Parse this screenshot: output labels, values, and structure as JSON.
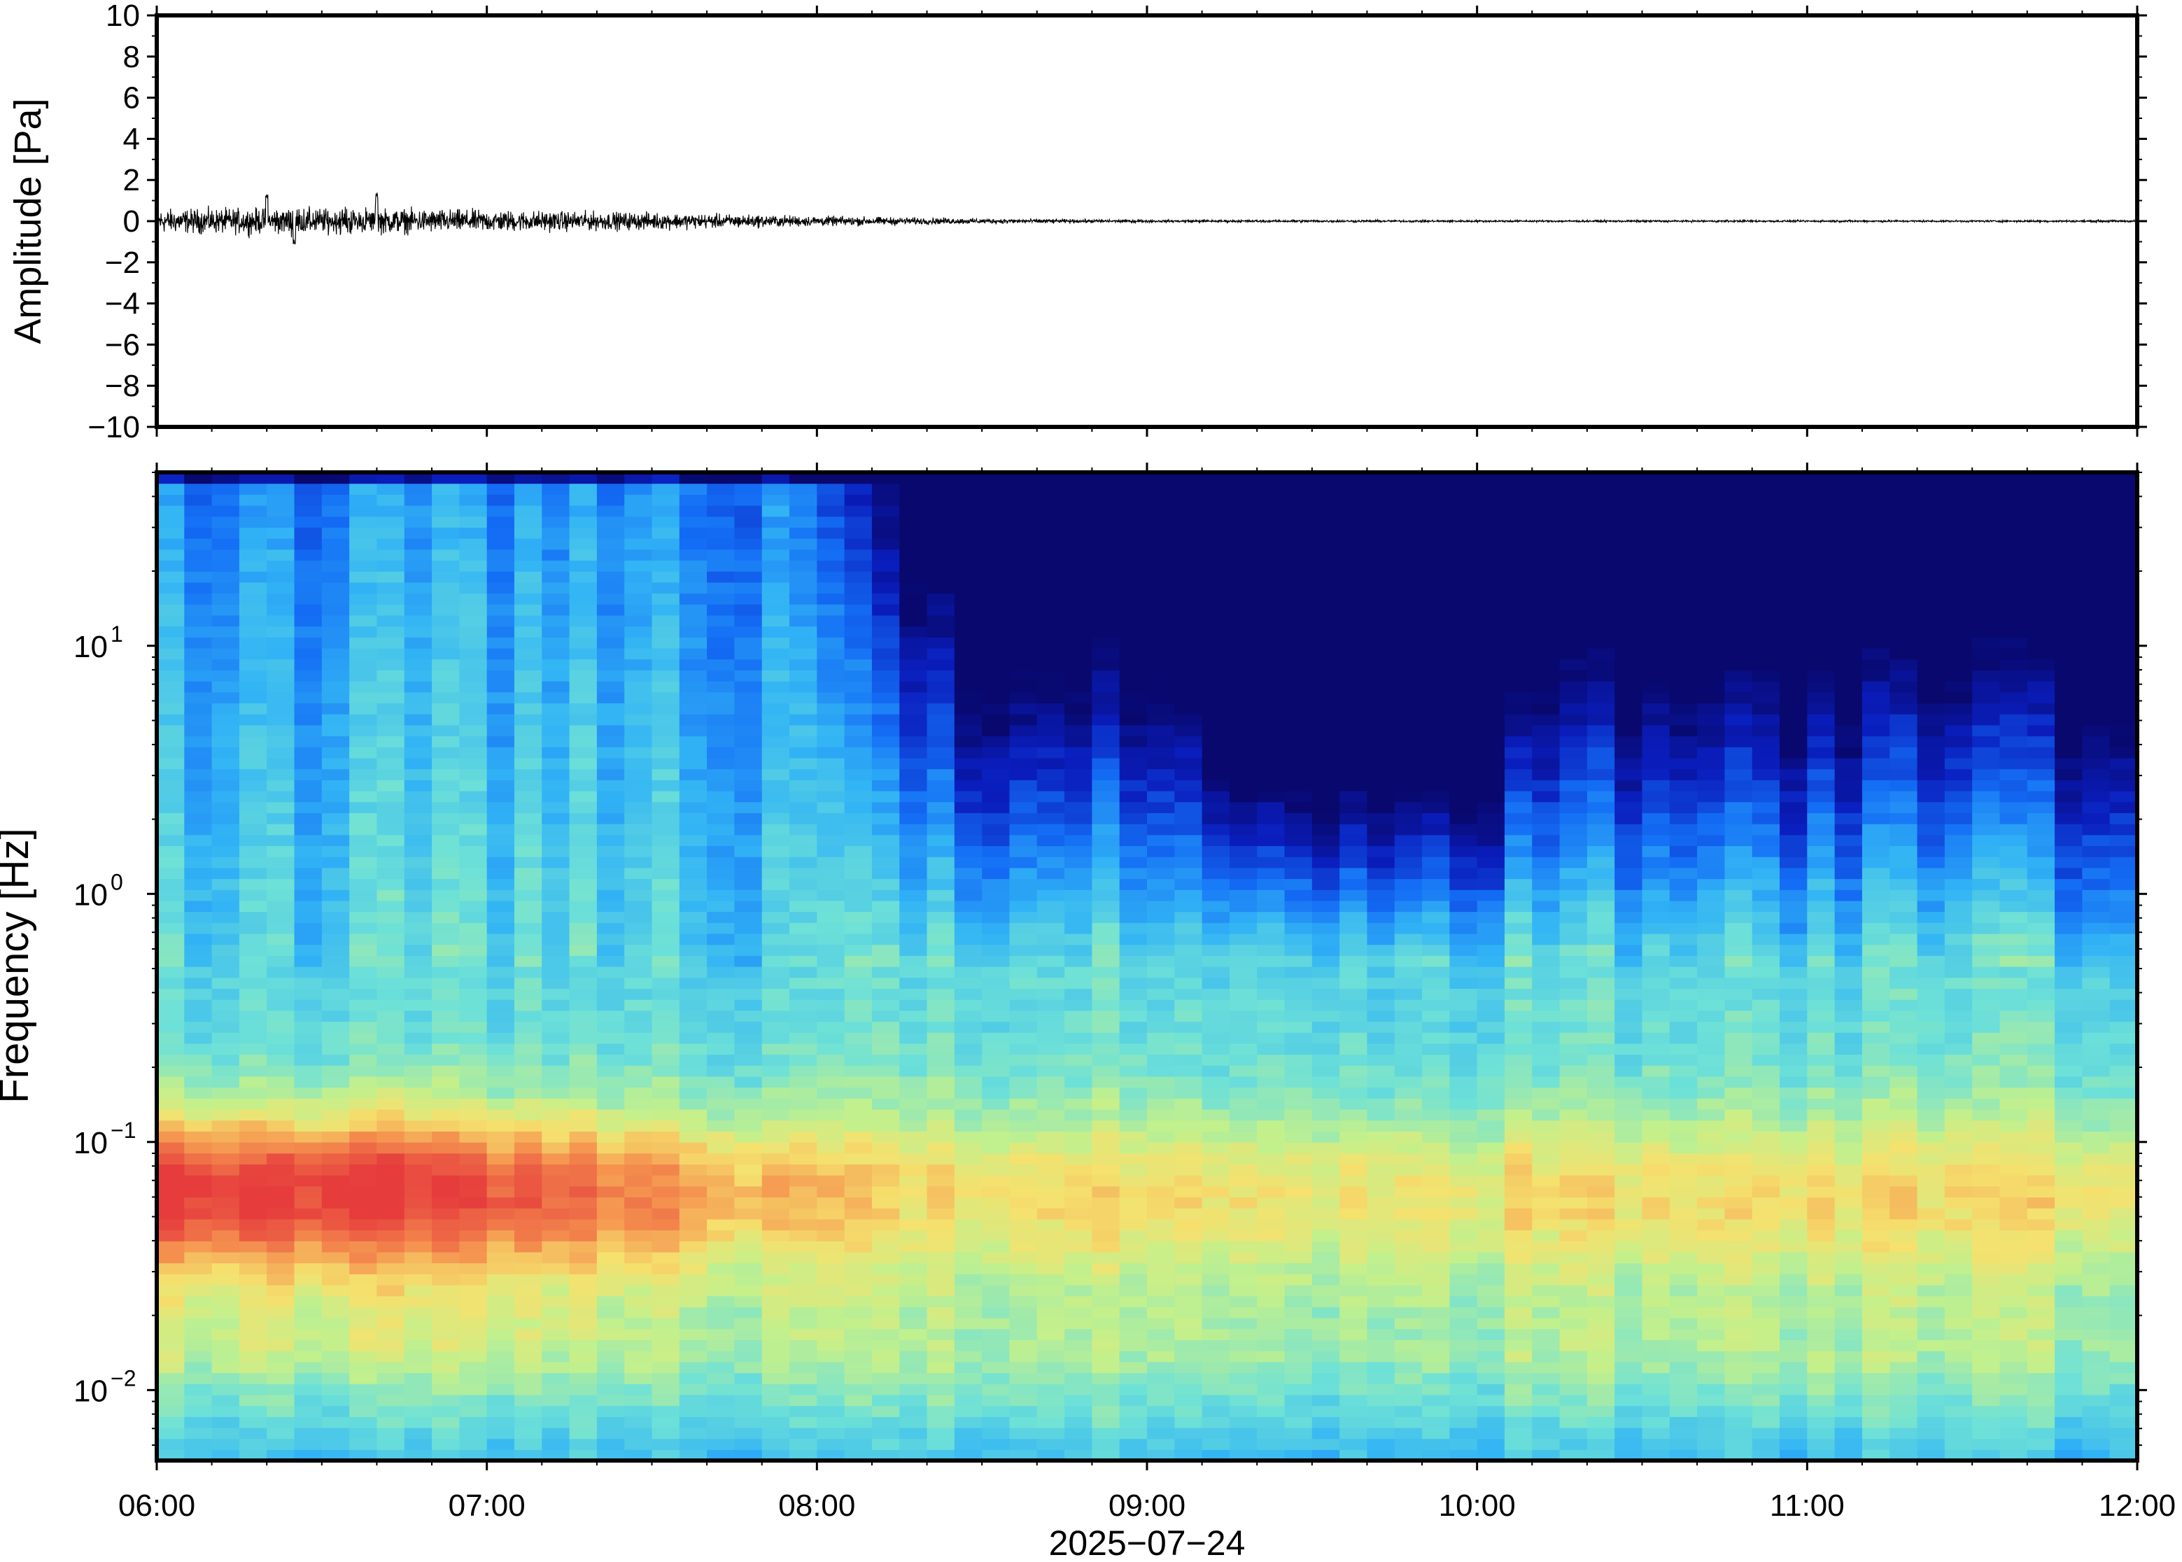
{
  "chart_data": [
    {
      "type": "line",
      "ylabel": "Amplitude [Pa]",
      "ylim": [
        -10,
        10
      ],
      "yticks": [
        "10",
        "8",
        "6",
        "4",
        "2",
        "0",
        "−2",
        "−4",
        "−6",
        "−8",
        "−10"
      ],
      "xlim": [
        "06:00",
        "12:00"
      ],
      "envelope": {
        "time_hours": [
          6.0,
          6.5,
          7.0,
          7.5,
          8.0,
          8.5,
          9.0,
          10.0,
          11.0,
          12.0
        ],
        "half_amplitude_pa": [
          0.7,
          0.8,
          0.65,
          0.5,
          0.3,
          0.15,
          0.08,
          0.06,
          0.06,
          0.06
        ]
      },
      "peaks": [
        {
          "time": "06:20",
          "value": 1.3
        },
        {
          "time": "06:40",
          "value": 1.5
        },
        {
          "time": "06:25",
          "value": -1.2
        }
      ]
    },
    {
      "type": "heatmap",
      "ylabel": "Frequency [Hz]",
      "yscale": "log",
      "ylim": [
        0.0052,
        50
      ],
      "yticks": [
        {
          "base": "10",
          "exp": "1",
          "value": 10
        },
        {
          "base": "10",
          "exp": "0",
          "value": 1
        },
        {
          "base": "10",
          "exp": "−1",
          "value": 0.1
        },
        {
          "base": "10",
          "exp": "−2",
          "value": 0.01
        }
      ],
      "colormap": "jet-like (dark blue = low power, red = high power)",
      "notes": "High power (red/orange) at 0.03-0.2 Hz from 06:00 to 08:00; high frequencies drop to dark blue after 08:20, darkest 09:15-10:10"
    }
  ],
  "xaxis": {
    "ticks": [
      "06:00",
      "07:00",
      "08:00",
      "09:00",
      "10:00",
      "11:00",
      "12:00"
    ],
    "date_label": "2025−07−24"
  },
  "colors": {
    "frame": "#000000",
    "trace": "#000000"
  }
}
